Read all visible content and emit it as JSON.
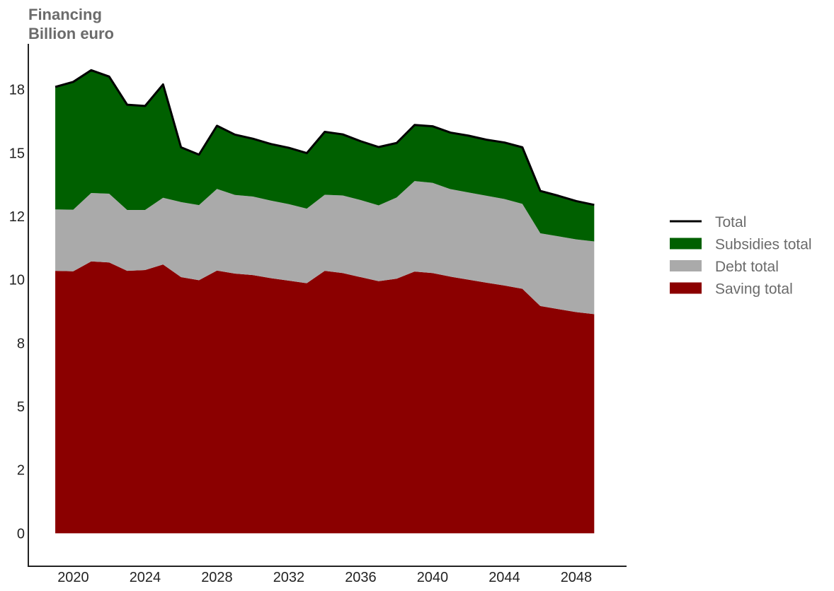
{
  "chart_data": {
    "type": "area",
    "stacked": true,
    "title_lines": [
      "Financing",
      "Billion euro"
    ],
    "xlabel": "",
    "ylabel": "",
    "x": [
      2019,
      2020,
      2021,
      2022,
      2023,
      2024,
      2025,
      2026,
      2027,
      2028,
      2029,
      2030,
      2031,
      2032,
      2033,
      2034,
      2035,
      2036,
      2037,
      2038,
      2039,
      2040,
      2041,
      2042,
      2043,
      2044,
      2045,
      2046,
      2047,
      2048,
      2049
    ],
    "xlim": [
      2017.5,
      2050.8
    ],
    "ylim": [
      -1.3,
      19.3
    ],
    "x_ticks": [
      2020,
      2024,
      2028,
      2032,
      2036,
      2040,
      2044,
      2048
    ],
    "y_ticks": [
      {
        "value": 0,
        "label": "0"
      },
      {
        "value": 2.5,
        "label": "2"
      },
      {
        "value": 5,
        "label": "5"
      },
      {
        "value": 7.5,
        "label": "8"
      },
      {
        "value": 10,
        "label": "10"
      },
      {
        "value": 12.5,
        "label": "12"
      },
      {
        "value": 15,
        "label": "15"
      },
      {
        "value": 17.5,
        "label": "18"
      }
    ],
    "series": [
      {
        "name": "Saving total",
        "color": "#8b0000",
        "values": [
          10.35,
          10.33,
          10.72,
          10.68,
          10.35,
          10.38,
          10.6,
          10.1,
          9.98,
          10.36,
          10.24,
          10.18,
          10.06,
          9.96,
          9.86,
          10.35,
          10.26,
          10.1,
          9.94,
          10.04,
          10.32,
          10.26,
          10.12,
          10.0,
          9.88,
          9.77,
          9.64,
          8.96,
          8.84,
          8.72,
          8.64
        ]
      },
      {
        "name": "Debt total",
        "color": "#aaaaaa",
        "values": [
          2.42,
          2.43,
          2.7,
          2.71,
          2.4,
          2.37,
          2.63,
          2.96,
          2.96,
          3.22,
          3.1,
          3.1,
          3.06,
          3.02,
          2.94,
          3.0,
          3.06,
          3.04,
          2.99,
          3.2,
          3.57,
          3.56,
          3.45,
          3.44,
          3.43,
          3.41,
          3.35,
          2.87,
          2.87,
          2.87,
          2.87
        ]
      },
      {
        "name": "Subsidies total",
        "color": "#006000",
        "values": [
          4.83,
          5.04,
          4.84,
          4.62,
          4.15,
          4.1,
          4.47,
          2.16,
          1.99,
          2.49,
          2.38,
          2.28,
          2.23,
          2.22,
          2.19,
          2.48,
          2.41,
          2.32,
          2.3,
          2.15,
          2.21,
          2.23,
          2.23,
          2.24,
          2.21,
          2.23,
          2.23,
          1.67,
          1.6,
          1.51,
          1.44
        ]
      }
    ],
    "total_line": {
      "name": "Total",
      "color": "#000000"
    },
    "legend": {
      "placement": "right",
      "entries": [
        {
          "label": "Total",
          "kind": "line",
          "color": "#000000"
        },
        {
          "label": "Subsidies total",
          "kind": "patch",
          "color": "#006000"
        },
        {
          "label": "Debt total",
          "kind": "patch",
          "color": "#aaaaaa"
        },
        {
          "label": "Saving total",
          "kind": "patch",
          "color": "#8b0000"
        }
      ]
    },
    "grid": false
  }
}
